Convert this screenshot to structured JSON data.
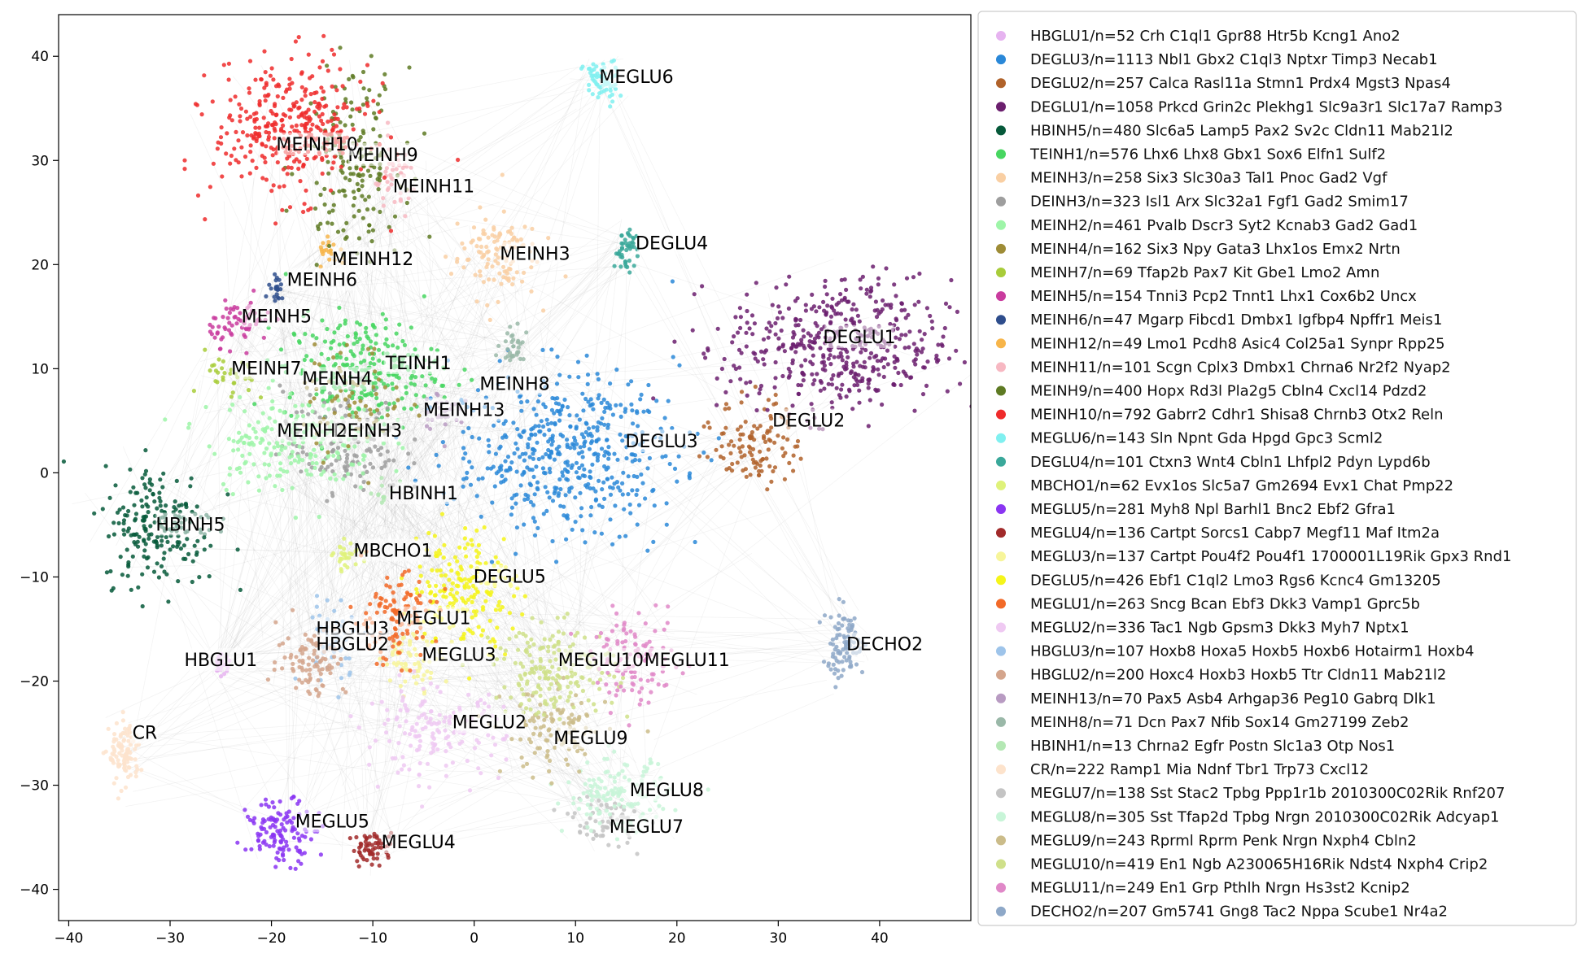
{
  "chart_data": {
    "type": "scatter",
    "title": "",
    "xlabel": "",
    "ylabel": "",
    "xlim": [
      -41,
      49
    ],
    "ylim": [
      -43,
      44
    ],
    "x_ticks": [
      -40,
      -30,
      -20,
      -10,
      0,
      10,
      20,
      30,
      40
    ],
    "y_ticks": [
      -40,
      -30,
      -20,
      -10,
      0,
      10,
      20,
      30,
      40
    ],
    "x_tick_labels": [
      "−40",
      "−30",
      "−20",
      "−10",
      "0",
      "10",
      "20",
      "30",
      "40"
    ],
    "y_tick_labels": [
      "−40",
      "−30",
      "−20",
      "−10",
      "0",
      "10",
      "20",
      "30",
      "40"
    ],
    "grid": false,
    "legend_position": "right",
    "background_edges": "light gray lines connecting cells across clusters",
    "series": [
      {
        "name": "HBGLU1/n=52 Crh C1ql1 Gpr88 Htr5b Kcng1 Ano2",
        "label": "HBGLU1",
        "color": "#e6b3f0",
        "center": [
          -25,
          -18.5
        ],
        "spread": [
          0.5,
          0.6
        ],
        "n": 52,
        "label_pos": [
          -25,
          -18
        ]
      },
      {
        "name": "DEGLU3/n=1113 Nbl1 Gbx2 C1ql3 Nptxr Timp3 Necab1",
        "label": "DEGLU3",
        "color": "#2a88d8",
        "center": [
          9,
          2
        ],
        "spread": [
          6.5,
          4.5
        ],
        "n": 1113,
        "label_pos": [
          18.5,
          3
        ]
      },
      {
        "name": "DEGLU2/n=257 Calca Rasl11a Stmn1 Prdx4 Mgst3 Npas4",
        "label": "DEGLU2",
        "color": "#b0622a",
        "center": [
          28,
          3
        ],
        "spread": [
          2.5,
          2.5
        ],
        "n": 257,
        "label_pos": [
          33,
          5
        ]
      },
      {
        "name": "DEGLU1/n=1058 Prkcd Grin2c Plekhg1 Slc9a3r1 Slc17a7 Ramp3",
        "label": "DEGLU1",
        "color": "#6b1f6e",
        "center": [
          36,
          12
        ],
        "spread": [
          6.5,
          3.8
        ],
        "n": 1058,
        "label_pos": [
          38,
          13
        ]
      },
      {
        "name": "HBINH5/n=480 Slc6a5 Lamp5 Pax2 Sv2c Cldn11 Mab21l2",
        "label": "HBINH5",
        "color": "#06593a",
        "center": [
          -31,
          -5
        ],
        "spread": [
          3.3,
          3.4
        ],
        "n": 480,
        "label_pos": [
          -28,
          -5
        ]
      },
      {
        "name": "TEINH1/n=576 Lhx6 Lhx8 Gbx1 Sox6 Elfn1 Sulf2",
        "label": "TEINH1",
        "color": "#47d660",
        "center": [
          -11,
          10
        ],
        "spread": [
          4.5,
          3
        ],
        "n": 576,
        "label_pos": [
          -5.5,
          10.5
        ]
      },
      {
        "name": "MEINH3/n=258 Six3 Slc30a3 Tal1 Pnoc Gad2 Vgf",
        "label": "MEINH3",
        "color": "#f9cfa3",
        "center": [
          2,
          21
        ],
        "spread": [
          2.5,
          2.5
        ],
        "n": 258,
        "label_pos": [
          6,
          21
        ]
      },
      {
        "name": "DEINH3/n=323 Isl1 Arx Slc32a1 Fgf1 Gad2 Smim17",
        "label": "DEINH3",
        "color": "#9e9e9e",
        "center": [
          -13,
          3
        ],
        "spread": [
          3.5,
          3
        ],
        "n": 323,
        "label_pos": [
          -10.5,
          4
        ]
      },
      {
        "name": "MEINH2/n=461 Pvalb Dscr3 Syt2 Kcnab3 Gad2 Gad1",
        "label": "MEINH2",
        "color": "#9ef5a8",
        "center": [
          -18,
          3
        ],
        "spread": [
          5,
          2.8
        ],
        "n": 461,
        "label_pos": [
          -16,
          4
        ]
      },
      {
        "name": "MEINH4/n=162 Six3 Npy Gata3 Lhx1os Emx2 Nrtn",
        "label": "MEINH4",
        "color": "#9e8c36",
        "center": [
          -12,
          7
        ],
        "spread": [
          3,
          3
        ],
        "n": 162,
        "label_pos": [
          -13.5,
          9
        ]
      },
      {
        "name": "MEINH7/n=69 Tfap2b Pax7 Kit Gbe1 Lmo2 Amn",
        "label": "MEINH7",
        "color": "#a8cc3a",
        "center": [
          -24,
          9
        ],
        "spread": [
          1.5,
          1.5
        ],
        "n": 69,
        "label_pos": [
          -20.5,
          10
        ]
      },
      {
        "name": "MEINH5/n=154 Tnni3 Pcp2 Tnnt1 Lhx1 Cox6b2 Uncx",
        "label": "MEINH5",
        "color": "#c93b9e",
        "center": [
          -23,
          14.5
        ],
        "spread": [
          1.8,
          1.3
        ],
        "n": 154,
        "label_pos": [
          -19.5,
          15
        ]
      },
      {
        "name": "MEINH6/n=47 Mgarp Fibcd1 Dmbx1 Igfbp4 Npffr1 Meis1",
        "label": "MEINH6",
        "color": "#2e4d8c",
        "center": [
          -19.5,
          17.5
        ],
        "spread": [
          0.6,
          0.7
        ],
        "n": 47,
        "label_pos": [
          -15,
          18.5
        ]
      },
      {
        "name": "MEINH12/n=49 Lmo1 Pcdh8 Asic4 Col25a1 Synpr Rpp25",
        "label": "MEINH12",
        "color": "#f7b54a",
        "center": [
          -14,
          21
        ],
        "spread": [
          0.8,
          0.8
        ],
        "n": 49,
        "label_pos": [
          -10,
          20.5
        ]
      },
      {
        "name": "MEINH11/n=101 Scgn Cplx3 Dmbx1 Chrna6 Nr2f2 Nyap2",
        "label": "MEINH11",
        "color": "#f7b8c2",
        "center": [
          -8,
          28
        ],
        "spread": [
          1.5,
          2
        ],
        "n": 101,
        "label_pos": [
          -4,
          27.5
        ]
      },
      {
        "name": "MEINH9/n=400 Hopx Rd3l Pla2g5 Cbln4 Cxcl14 Pdzd2",
        "label": "MEINH9",
        "color": "#5e7a23",
        "center": [
          -12,
          30
        ],
        "spread": [
          2.8,
          5
        ],
        "n": 400,
        "label_pos": [
          -9,
          30.5
        ]
      },
      {
        "name": "MEINH10/n=792 Gabrr2 Cdhr1 Shisa8 Chrnb3 Otx2 Reln",
        "label": "MEINH10",
        "color": "#ef2b2b",
        "center": [
          -18,
          33
        ],
        "spread": [
          4.5,
          3.8
        ],
        "n": 792,
        "label_pos": [
          -15.5,
          31.5
        ]
      },
      {
        "name": "MEGLU6/n=143 Sln Npnt Gda Hpgd Gpc3 Scml2",
        "label": "MEGLU6",
        "color": "#80f0f0",
        "center": [
          12.5,
          37.5
        ],
        "spread": [
          1,
          1.3
        ],
        "n": 143,
        "label_pos": [
          16,
          38
        ]
      },
      {
        "name": "DEGLU4/n=101 Ctxn3 Wnt4 Cbln1 Lhfpl2 Pdyn Lypd6b",
        "label": "DEGLU4",
        "color": "#3aa89a",
        "center": [
          15,
          21.5
        ],
        "spread": [
          0.7,
          1.1
        ],
        "n": 101,
        "label_pos": [
          19.5,
          22
        ]
      },
      {
        "name": "MBCHO1/n=62 Evx1os Slc5a7 Gm2694 Evx1 Chat Pmp22",
        "label": "MBCHO1",
        "color": "#dff27a",
        "center": [
          -12.5,
          -8
        ],
        "spread": [
          0.8,
          0.8
        ],
        "n": 62,
        "label_pos": [
          -8,
          -7.5
        ]
      },
      {
        "name": "MEGLU5/n=281 Myh8 Npl Barhl1 Bnc2 Ebf2 Gfra1",
        "label": "MEGLU5",
        "color": "#8a35f2",
        "center": [
          -19,
          -34.5
        ],
        "spread": [
          2,
          1.8
        ],
        "n": 281,
        "label_pos": [
          -14,
          -33.5
        ]
      },
      {
        "name": "MEGLU4/n=136 Cartpt Sorcs1 Cabp7 Megf11 Maf Itm2a",
        "label": "MEGLU4",
        "color": "#a12a2a",
        "center": [
          -10,
          -36
        ],
        "spread": [
          1.2,
          0.9
        ],
        "n": 136,
        "label_pos": [
          -5.5,
          -35.5
        ]
      },
      {
        "name": "MEGLU3/n=137 Cartpt Pou4f2 Pou4f1 1700001L19Rik Gpx3 Rnd1",
        "label": "MEGLU3",
        "color": "#f7f59a",
        "center": [
          -6,
          -18
        ],
        "spread": [
          1.8,
          1.5
        ],
        "n": 137,
        "label_pos": [
          -1.5,
          -17.5
        ]
      },
      {
        "name": "DEGLU5/n=426 Ebf1 C1ql2 Lmo3 Rgs6 Kcnc4 Gm13205",
        "label": "DEGLU5",
        "color": "#f5f51a",
        "center": [
          -1,
          -11
        ],
        "spread": [
          3,
          3.5
        ],
        "n": 426,
        "label_pos": [
          3.5,
          -10
        ]
      },
      {
        "name": "MEGLU1/n=263 Sncg Bcan Ebf3 Dkk3 Vamp1 Gprc5b",
        "label": "MEGLU1",
        "color": "#f26a28",
        "center": [
          -8,
          -14
        ],
        "spread": [
          2.5,
          2.5
        ],
        "n": 263,
        "label_pos": [
          -4,
          -14
        ]
      },
      {
        "name": "MEGLU2/n=336 Tac1 Ngb Gpsm3 Dkk3 Myh7 Nptx1",
        "label": "MEGLU2",
        "color": "#efc9f2",
        "center": [
          -4,
          -25
        ],
        "spread": [
          4,
          2.5
        ],
        "n": 336,
        "label_pos": [
          1.5,
          -24
        ]
      },
      {
        "name": "HBGLU3/n=107 Hoxb8 Hoxa5 Hoxb5 Hoxb6 Hotairm1 Hoxb4",
        "label": "HBGLU3",
        "color": "#9ec4ea",
        "center": [
          -14,
          -16
        ],
        "spread": [
          1.8,
          2.5
        ],
        "n": 107,
        "label_pos": [
          -12,
          -15
        ]
      },
      {
        "name": "HBGLU2/n=200 Hoxc4 Hoxb3 Hoxb5 Ttr Cldn11 Mab21l2",
        "label": "HBGLU2",
        "color": "#d4a58c",
        "center": [
          -16,
          -18
        ],
        "spread": [
          2,
          2
        ],
        "n": 200,
        "label_pos": [
          -12,
          -16.5
        ]
      },
      {
        "name": "MEINH13/n=70 Pax5 Asb4 Arhgap36 Peg10 Gabrq Dlk1",
        "label": "MEINH13",
        "color": "#b89bc2",
        "center": [
          -3,
          6
        ],
        "spread": [
          1.2,
          1.2
        ],
        "n": 70,
        "label_pos": [
          -1,
          6
        ]
      },
      {
        "name": "MEINH8/n=71 Dcn Pax7 Nfib Sox14 Gm27199 Zeb2",
        "label": "MEINH8",
        "color": "#9ab8a8",
        "center": [
          4,
          12
        ],
        "spread": [
          1,
          1
        ],
        "n": 71,
        "label_pos": [
          4,
          8.5
        ]
      },
      {
        "name": "HBINH1/n=13 Chrna2 Egfr Postn Slc1a3 Otp Nos1",
        "label": "HBINH1",
        "color": "#b4e8b4",
        "center": [
          -9,
          -2
        ],
        "spread": [
          0.8,
          0.8
        ],
        "n": 13,
        "label_pos": [
          -5,
          -2
        ]
      },
      {
        "name": "CR/n=222 Ramp1 Mia Ndnf Tbr1 Trp73 Cxcl12",
        "label": "CR",
        "color": "#fde3cc",
        "center": [
          -34.5,
          -27
        ],
        "spread": [
          0.9,
          1.8
        ],
        "n": 222,
        "label_pos": [
          -32.5,
          -25
        ]
      },
      {
        "name": "MEGLU7/n=138 Sst Stac2 Tpbg Ppp1r1b 2010300C02Rik Rnf207",
        "label": "MEGLU7",
        "color": "#c4c4c4",
        "center": [
          13,
          -33.5
        ],
        "spread": [
          2,
          1.5
        ],
        "n": 138,
        "label_pos": [
          17,
          -34
        ]
      },
      {
        "name": "MEGLU8/n=305 Sst Tfap2d Tpbg Nrgn 2010300C02Rik Adcyap1",
        "label": "MEGLU8",
        "color": "#c8f5d8",
        "center": [
          14,
          -31
        ],
        "spread": [
          3,
          2
        ],
        "n": 305,
        "label_pos": [
          19,
          -30.5
        ]
      },
      {
        "name": "MEGLU9/n=243 Rprml Rprm Penk Nrgn Nxph4 Cbln2",
        "label": "MEGLU9",
        "color": "#cbbc8a",
        "center": [
          8,
          -25
        ],
        "spread": [
          3,
          2.5
        ],
        "n": 243,
        "label_pos": [
          11.5,
          -25.5
        ]
      },
      {
        "name": "MEGLU10/n=419 En1 Ngb A230065H16Rik Ndst4 Nxph4 Crip2",
        "label": "MEGLU10",
        "color": "#cfe08a",
        "center": [
          8,
          -19
        ],
        "spread": [
          3.5,
          2.5
        ],
        "n": 419,
        "label_pos": [
          12.5,
          -18
        ]
      },
      {
        "name": "MEGLU11/n=249 En1 Grp Pthlh Nrgn Hs3st2 Kcnip2",
        "label": "MEGLU11",
        "color": "#e088c8",
        "center": [
          16,
          -18
        ],
        "spread": [
          2.5,
          2.5
        ],
        "n": 249,
        "label_pos": [
          21,
          -18
        ]
      },
      {
        "name": "DECHO2/n=207 Gm5741 Gng8 Tac2 Nppa Scube1 Nr4a2",
        "label": "DECHO2",
        "color": "#8ea8c8",
        "center": [
          36.5,
          -16.5
        ],
        "spread": [
          1.2,
          2
        ],
        "n": 207,
        "label_pos": [
          40.5,
          -16.5
        ]
      }
    ]
  }
}
